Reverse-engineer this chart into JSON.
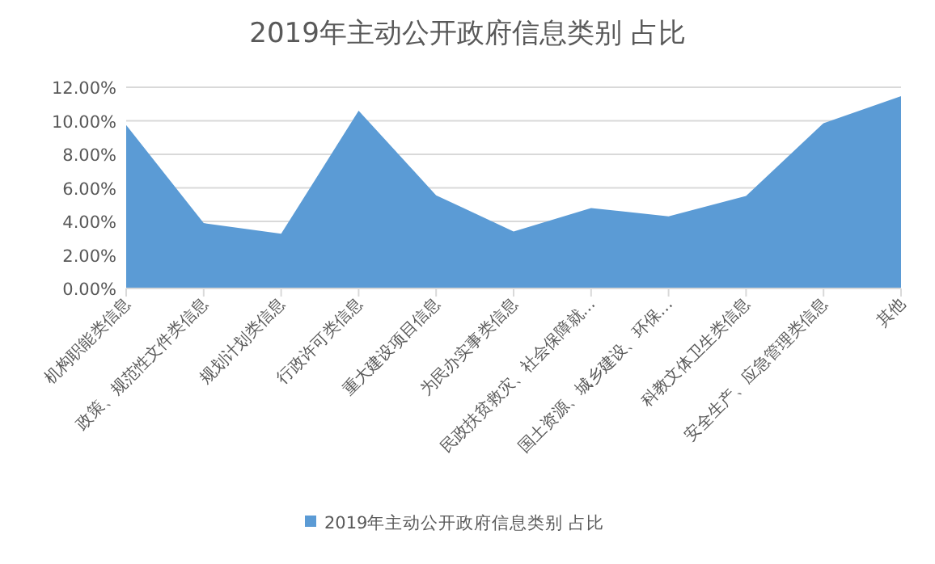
{
  "chart_data": {
    "type": "area",
    "title": "2019年主动公开政府信息类别 占比",
    "categories": [
      "机构职能类信息",
      "政策、规范性文件类信息",
      "规划计划类信息",
      "行政许可类信息",
      "重大建设项目信息",
      "为民办实事类信息",
      "民政扶贫救灾、社会保障就…",
      "国土资源、城乡建设、环保…",
      "科教文体卫生类信息",
      "安全生产、应急管理类信息",
      "其他"
    ],
    "series": [
      {
        "name": "2019年主动公开政府信息类别 占比",
        "color": "#5b9bd5",
        "values": [
          9.75,
          3.9,
          3.26,
          10.6,
          5.56,
          3.4,
          4.8,
          4.3,
          5.52,
          9.86,
          11.47
        ]
      }
    ],
    "ylim": [
      0,
      12
    ],
    "yticks": [
      {
        "value": 0,
        "label": "0.00%"
      },
      {
        "value": 2,
        "label": "2.00%"
      },
      {
        "value": 4,
        "label": "4.00%"
      },
      {
        "value": 6,
        "label": "6.00%"
      },
      {
        "value": 8,
        "label": "8.00%"
      },
      {
        "value": 10,
        "label": "10.00%"
      },
      {
        "value": 12,
        "label": "12.00%"
      }
    ],
    "grid": "y",
    "legend": "bottom"
  }
}
